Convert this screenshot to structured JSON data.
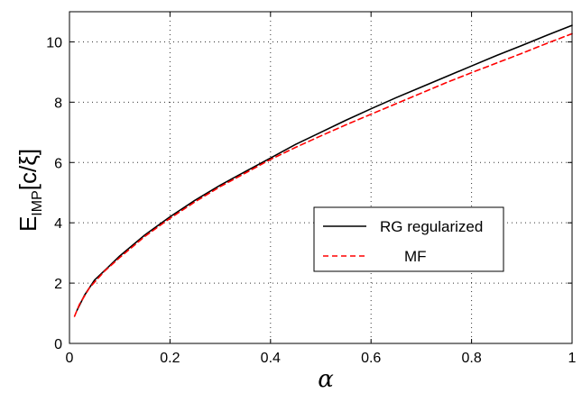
{
  "chart_data": {
    "type": "line",
    "xlabel": "α",
    "ylabel": "E_IMP[c/ξ]",
    "ylabel_main": "E",
    "ylabel_sub": "IMP",
    "ylabel_rest": "[c/ξ]",
    "xlim": [
      0,
      1
    ],
    "ylim": [
      0,
      11
    ],
    "xticks": [
      0,
      0.2,
      0.4,
      0.6,
      0.8,
      1
    ],
    "xtick_labels": [
      "0",
      "0.2",
      "0.4",
      "0.6",
      "0.8",
      "1"
    ],
    "yticks": [
      0,
      2,
      4,
      6,
      8,
      10
    ],
    "ytick_labels": [
      "0",
      "2",
      "4",
      "6",
      "8",
      "10"
    ],
    "grid": true,
    "legend_position": "lower-right",
    "series": [
      {
        "name": "RG regularized",
        "color": "#000000",
        "style": "solid",
        "x": [
          0.015,
          0.03,
          0.05,
          0.075,
          0.1,
          0.15,
          0.2,
          0.25,
          0.3,
          0.35,
          0.4,
          0.45,
          0.5,
          0.55,
          0.6,
          0.65,
          0.7,
          0.75,
          0.8,
          0.85,
          0.9,
          0.95,
          1.0
        ],
        "y": [
          1.1,
          1.6,
          2.1,
          2.5,
          2.9,
          3.6,
          4.2,
          4.75,
          5.25,
          5.7,
          6.15,
          6.6,
          7.0,
          7.4,
          7.78,
          8.15,
          8.5,
          8.85,
          9.2,
          9.55,
          9.88,
          10.22,
          10.55
        ]
      },
      {
        "name": "MF",
        "color": "#ff0000",
        "style": "dashed",
        "x": [
          0.01,
          0.02,
          0.04,
          0.07,
          0.1,
          0.15,
          0.2,
          0.25,
          0.3,
          0.35,
          0.4,
          0.45,
          0.5,
          0.55,
          0.6,
          0.65,
          0.7,
          0.75,
          0.8,
          0.85,
          0.9,
          0.95,
          1.0
        ],
        "y": [
          0.9,
          1.3,
          1.85,
          2.4,
          2.85,
          3.55,
          4.15,
          4.7,
          5.2,
          5.65,
          6.1,
          6.5,
          6.88,
          7.25,
          7.6,
          7.95,
          8.3,
          8.65,
          8.98,
          9.3,
          9.62,
          9.95,
          10.27
        ]
      }
    ]
  }
}
